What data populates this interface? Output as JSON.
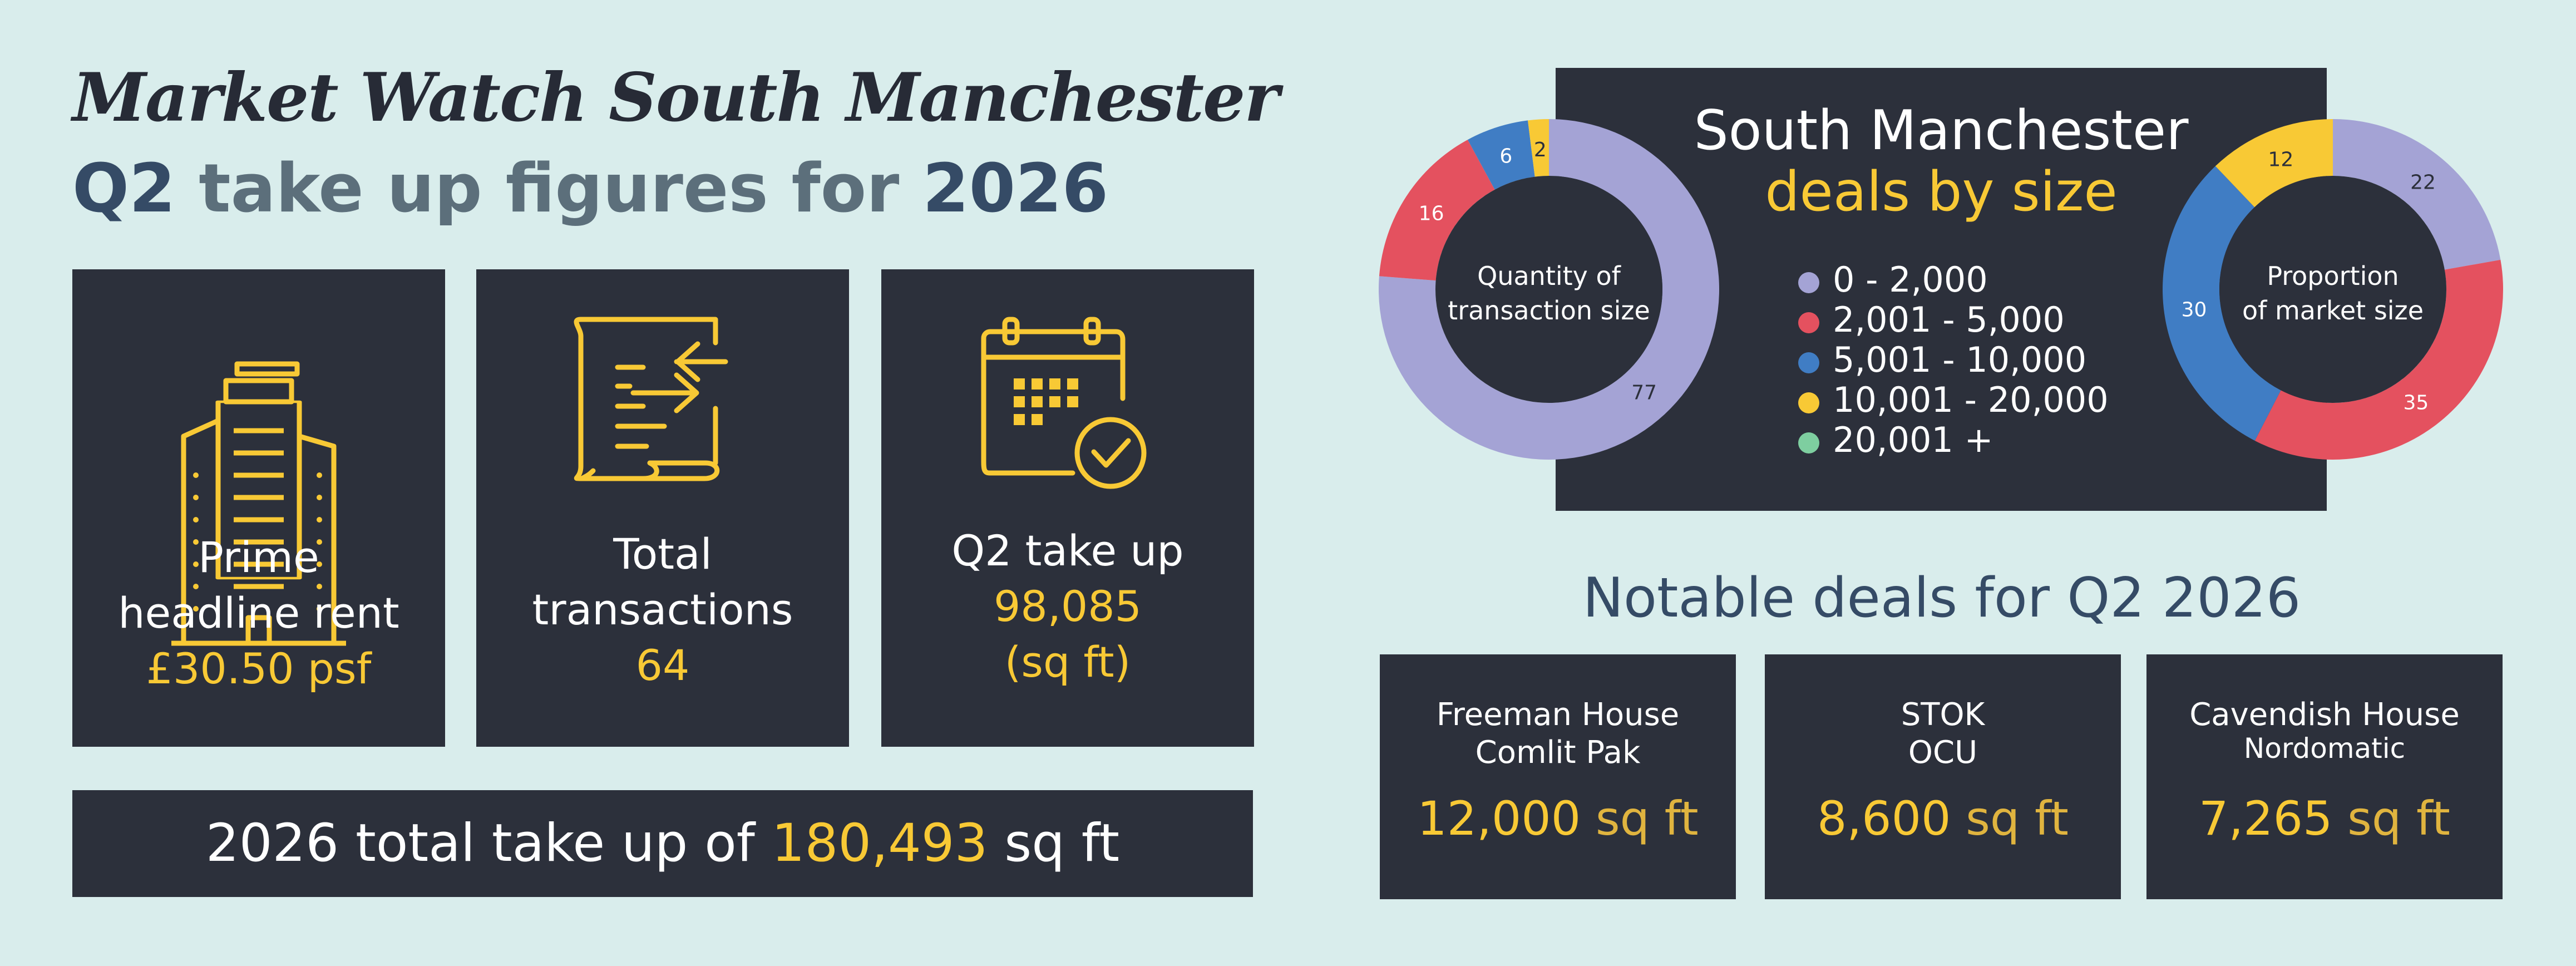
{
  "header": {
    "title": "Market Watch South Manchester",
    "subtitle_prefix": "Q2",
    "subtitle_middle": " take up figures for ",
    "subtitle_year": "2026"
  },
  "stats": [
    {
      "line1": "Prime",
      "line2": "headline rent",
      "value": "£30.50 psf",
      "icon": "office-building-icon"
    },
    {
      "line1": "Total",
      "line2": "transactions",
      "value": "64",
      "icon": "document-transfer-icon"
    },
    {
      "line1": "Q2 take up",
      "value": "98,085",
      "value2": "(sq ft)",
      "icon": "calendar-check-icon"
    }
  ],
  "total": {
    "prefix": "2026 total take up of ",
    "value": "180,493",
    "suffix": " sq ft"
  },
  "legend": {
    "title_line1": "South Manchester",
    "title_line2": "deals by size",
    "items": [
      {
        "label": "0 - 2,000",
        "color": "#a4a3d5"
      },
      {
        "label": "2,001 - 5,000",
        "color": "#e4515f"
      },
      {
        "label": "5,001 - 10,000",
        "color": "#407dc4"
      },
      {
        "label": "10,001 - 20,000",
        "color": "#f8c935"
      },
      {
        "label": "20,001 +",
        "color": "#7ecea0"
      }
    ]
  },
  "chart_data": [
    {
      "type": "pie",
      "title": "Quantity of transaction size",
      "center_line1": "Quantity of",
      "center_line2": "transaction size",
      "labels": [
        "0 - 2,000",
        "2,001 - 5,000",
        "5,001 - 10,000",
        "10,001 - 20,000",
        "20,001 +"
      ],
      "values": [
        77,
        16,
        6,
        2,
        0
      ],
      "data_labels": [
        "77",
        "16",
        "6",
        "2",
        ""
      ],
      "colors": [
        "#a4a3d5",
        "#e4515f",
        "#407dc4",
        "#f8c935",
        "#7ecea0"
      ]
    },
    {
      "type": "pie",
      "title": "Proportion of market size",
      "center_line1": "Proportion",
      "center_line2": "of market size",
      "labels": [
        "0 - 2,000",
        "2,001 - 5,000",
        "5,001 - 10,000",
        "10,001 - 20,000",
        "20,001 +"
      ],
      "values": [
        22,
        35,
        30,
        12,
        0
      ],
      "data_labels": [
        "22",
        "35",
        "30",
        "12",
        ""
      ],
      "colors": [
        "#a4a3d5",
        "#e4515f",
        "#407dc4",
        "#f8c935",
        "#7ecea0"
      ]
    }
  ],
  "notable": {
    "title": "Notable deals for Q2 2026",
    "deals": [
      {
        "name1": "Freeman House",
        "name2": "Comlit Pak",
        "size": "12,000",
        "unit": "sq ft"
      },
      {
        "name1": "STOK",
        "name2": "OCU",
        "size": "8,600",
        "unit": "sq ft"
      },
      {
        "name1": "Cavendish House",
        "name2": "Nordomatic",
        "size": "7,265",
        "unit": "sq ft"
      }
    ]
  }
}
